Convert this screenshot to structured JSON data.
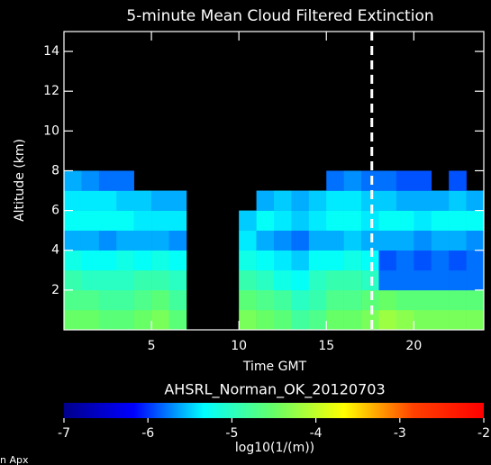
{
  "chart_data": {
    "type": "heatmap",
    "title": "5-minute Mean Cloud Filtered Extinction",
    "x_label": "Time GMT",
    "y_label": "Altitude (km)",
    "subtitle": "AHSRL_Norman_OK_20120703",
    "footer": "n Apx",
    "xlim": [
      0,
      24
    ],
    "xticks": [
      5,
      10,
      15,
      20
    ],
    "ylim": [
      0,
      15
    ],
    "yticks": [
      2,
      4,
      6,
      8,
      10,
      12,
      14
    ],
    "xbins": [
      0,
      1,
      2,
      3,
      4,
      5,
      6,
      7,
      8,
      9,
      10,
      11,
      12,
      13,
      14,
      15,
      16,
      17,
      18,
      19,
      20,
      21,
      22,
      23,
      24
    ],
    "ybins": [
      0,
      1,
      2,
      3,
      4,
      5,
      6,
      7,
      8
    ],
    "z": [
      [
        -4.5,
        -4.5,
        -4.6,
        -4.6,
        -4.5,
        -4.4,
        -4.6,
        null,
        null,
        null,
        -4.4,
        -4.5,
        -4.6,
        -4.8,
        -4.7,
        -4.5,
        -4.5,
        -4.4,
        -4.2,
        -4.3,
        -4.4,
        -4.4,
        -4.4,
        -4.4
      ],
      [
        -4.7,
        -4.7,
        -4.8,
        -4.8,
        -4.7,
        -4.6,
        -4.8,
        null,
        null,
        null,
        -4.6,
        -4.7,
        -4.8,
        -5.0,
        -4.9,
        -4.7,
        -4.7,
        -4.6,
        -4.5,
        -4.6,
        -4.6,
        -4.6,
        -4.6,
        -4.6
      ],
      [
        -4.9,
        -5.0,
        -5.0,
        -5.0,
        -4.9,
        -4.9,
        -5.0,
        null,
        null,
        null,
        -4.9,
        -5.0,
        -5.2,
        -5.3,
        -5.0,
        -4.9,
        -4.9,
        -5.0,
        -5.8,
        -5.8,
        -5.8,
        -5.8,
        -5.8,
        -5.8
      ],
      [
        -5.2,
        -5.3,
        -5.3,
        -5.2,
        -5.3,
        -5.2,
        -5.3,
        null,
        null,
        null,
        -5.2,
        -5.3,
        -5.4,
        -5.5,
        -5.3,
        -5.3,
        -5.2,
        -5.3,
        -5.9,
        -5.8,
        -5.9,
        -5.8,
        -5.9,
        -5.8
      ],
      [
        -5.6,
        -5.6,
        -5.7,
        -5.6,
        -5.6,
        -5.6,
        -5.7,
        null,
        null,
        null,
        -5.4,
        -5.6,
        -5.7,
        -5.8,
        -5.6,
        -5.6,
        -5.5,
        -5.6,
        -5.6,
        -5.6,
        -5.7,
        -5.6,
        -5.6,
        -5.7
      ],
      [
        -5.3,
        -5.3,
        -5.3,
        -5.3,
        -5.4,
        -5.4,
        -5.4,
        null,
        null,
        null,
        -5.5,
        -5.3,
        -5.4,
        -5.5,
        -5.4,
        -5.3,
        -5.3,
        -5.4,
        -5.3,
        -5.3,
        -5.4,
        -5.3,
        -5.3,
        -5.3
      ],
      [
        -5.4,
        -5.4,
        -5.4,
        -5.5,
        -5.5,
        -5.6,
        -5.6,
        null,
        null,
        null,
        null,
        -5.6,
        -5.5,
        -5.6,
        -5.5,
        -5.4,
        -5.4,
        -5.5,
        -5.5,
        -5.6,
        -5.6,
        -5.6,
        -5.5,
        -5.6
      ],
      [
        -5.6,
        -5.7,
        -5.8,
        -5.8,
        null,
        null,
        null,
        null,
        null,
        null,
        null,
        null,
        null,
        null,
        null,
        -5.8,
        -5.7,
        -5.8,
        -5.8,
        -5.9,
        -5.9,
        null,
        -5.9,
        null
      ]
    ],
    "marker_x": 17.6,
    "marker_color": "#ffffff",
    "colorbar": {
      "label": "log10(1/(m))",
      "lim": [
        -7,
        -2
      ],
      "ticks": [
        -7,
        -6,
        -5,
        -4,
        -3,
        -2
      ]
    },
    "colormap": [
      "#00008b",
      "#0000ff",
      "#00ffff",
      "#66ff66",
      "#ffff00",
      "#ff4000",
      "#ff0000"
    ]
  }
}
